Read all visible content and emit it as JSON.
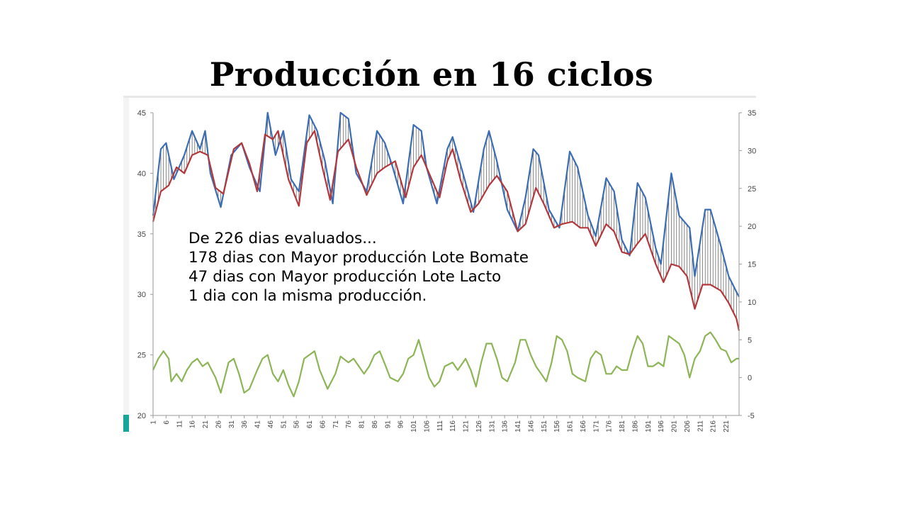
{
  "title": "Producción en 16 ciclos",
  "annotation": {
    "lines": [
      "De 226 dias evaluados...",
      "178 dias con Mayor producción  Lote Bomate",
      "47 dias con Mayor producción  Lote Lacto",
      "1 dia con la misma producción."
    ]
  },
  "colors": {
    "bomate": "#3b6db4",
    "lacto": "#b3383c",
    "difference": "#8cb556",
    "accent": "#1aa59b"
  },
  "chart_data": {
    "type": "line",
    "title": "",
    "xlabel": "",
    "ylabel": "",
    "x_range": [
      1,
      226
    ],
    "x_ticks": [
      1,
      6,
      11,
      16,
      21,
      26,
      31,
      36,
      41,
      46,
      51,
      56,
      61,
      66,
      71,
      76,
      81,
      86,
      91,
      96,
      101,
      106,
      111,
      116,
      121,
      126,
      131,
      136,
      141,
      146,
      151,
      156,
      161,
      166,
      171,
      176,
      181,
      186,
      191,
      196,
      201,
      206,
      211,
      216,
      221
    ],
    "y_left": {
      "range": [
        20,
        45
      ],
      "ticks": [
        20,
        25,
        30,
        35,
        40,
        45
      ]
    },
    "y_right": {
      "range": [
        -5,
        35
      ],
      "ticks": [
        -5,
        0,
        5,
        10,
        15,
        20,
        25,
        30,
        35
      ]
    },
    "grid": false,
    "legend": "none",
    "series": [
      {
        "axis": "left",
        "color": "#3b6db4",
        "points": [
          [
            1,
            36.5
          ],
          [
            4,
            42
          ],
          [
            6,
            42.5
          ],
          [
            9,
            39.5
          ],
          [
            13,
            41.5
          ],
          [
            16,
            43.5
          ],
          [
            19,
            42
          ],
          [
            21,
            43.5
          ],
          [
            23,
            40
          ],
          [
            27,
            37.2
          ],
          [
            31,
            41.5
          ],
          [
            35,
            42.5
          ],
          [
            38,
            40.5
          ],
          [
            42,
            38.5
          ],
          [
            45,
            45
          ],
          [
            48,
            41.5
          ],
          [
            51,
            43.5
          ],
          [
            54,
            39.5
          ],
          [
            57,
            38.5
          ],
          [
            61,
            44.8
          ],
          [
            64,
            43.5
          ],
          [
            67,
            41
          ],
          [
            70,
            37.5
          ],
          [
            73,
            45
          ],
          [
            76,
            44.5
          ],
          [
            79,
            40
          ],
          [
            83,
            38.5
          ],
          [
            87,
            43.5
          ],
          [
            90,
            42.5
          ],
          [
            93,
            40.5
          ],
          [
            97,
            37.5
          ],
          [
            101,
            44
          ],
          [
            104,
            43.5
          ],
          [
            106,
            40.5
          ],
          [
            110,
            37.5
          ],
          [
            114,
            42
          ],
          [
            116,
            43
          ],
          [
            120,
            40
          ],
          [
            124,
            36.8
          ],
          [
            128,
            42
          ],
          [
            130,
            43.5
          ],
          [
            133,
            41
          ],
          [
            137,
            37
          ],
          [
            141,
            35.2
          ],
          [
            144,
            38
          ],
          [
            147,
            42
          ],
          [
            149,
            41.5
          ],
          [
            153,
            37
          ],
          [
            157,
            35.5
          ],
          [
            161,
            41.8
          ],
          [
            164,
            40.5
          ],
          [
            168,
            36.5
          ],
          [
            171,
            34.8
          ],
          [
            175,
            39.6
          ],
          [
            178,
            38.5
          ],
          [
            181,
            34.5
          ],
          [
            184,
            33.2
          ],
          [
            187,
            39.2
          ],
          [
            190,
            38
          ],
          [
            194,
            33.8
          ],
          [
            196,
            32.5
          ],
          [
            200,
            40
          ],
          [
            203,
            36.5
          ],
          [
            207,
            35.5
          ],
          [
            209,
            31.5
          ],
          [
            213,
            37
          ],
          [
            215,
            37
          ],
          [
            219,
            34
          ],
          [
            222,
            31.5
          ],
          [
            225,
            30.2
          ],
          [
            226,
            29.8
          ]
        ]
      },
      {
        "axis": "left",
        "color": "#b3383c",
        "points": [
          [
            1,
            36
          ],
          [
            4,
            38.5
          ],
          [
            7,
            39
          ],
          [
            10,
            40.5
          ],
          [
            13,
            40
          ],
          [
            16,
            41.5
          ],
          [
            19,
            41.8
          ],
          [
            22,
            41.5
          ],
          [
            25,
            38.8
          ],
          [
            28,
            38.3
          ],
          [
            32,
            42
          ],
          [
            35,
            42.5
          ],
          [
            38,
            40.8
          ],
          [
            41,
            38.5
          ],
          [
            44,
            43.2
          ],
          [
            47,
            42.8
          ],
          [
            49,
            43.5
          ],
          [
            53,
            39.5
          ],
          [
            57,
            37.3
          ],
          [
            60,
            42.5
          ],
          [
            63,
            43.5
          ],
          [
            66,
            40.5
          ],
          [
            69,
            37.8
          ],
          [
            72,
            41.8
          ],
          [
            76,
            42.8
          ],
          [
            79,
            40.5
          ],
          [
            83,
            38.2
          ],
          [
            87,
            40
          ],
          [
            90,
            40.5
          ],
          [
            94,
            41
          ],
          [
            98,
            38
          ],
          [
            101,
            40.5
          ],
          [
            104,
            41.5
          ],
          [
            107,
            40
          ],
          [
            111,
            38
          ],
          [
            114,
            41
          ],
          [
            116,
            42
          ],
          [
            119,
            39.5
          ],
          [
            123,
            36.8
          ],
          [
            126,
            37.5
          ],
          [
            130,
            39
          ],
          [
            133,
            39.8
          ],
          [
            137,
            38.5
          ],
          [
            141,
            35.2
          ],
          [
            144,
            35.8
          ],
          [
            148,
            38.8
          ],
          [
            151,
            37.5
          ],
          [
            155,
            35.5
          ],
          [
            158,
            35.8
          ],
          [
            162,
            36
          ],
          [
            165,
            35.5
          ],
          [
            168,
            35.5
          ],
          [
            171,
            34
          ],
          [
            175,
            35.8
          ],
          [
            178,
            35.2
          ],
          [
            181,
            33.5
          ],
          [
            184,
            33.3
          ],
          [
            187,
            34.2
          ],
          [
            190,
            35
          ],
          [
            194,
            32.5
          ],
          [
            197,
            31
          ],
          [
            200,
            32.5
          ],
          [
            203,
            32.3
          ],
          [
            206,
            31.5
          ],
          [
            209,
            28.8
          ],
          [
            212,
            30.8
          ],
          [
            215,
            30.8
          ],
          [
            219,
            30.3
          ],
          [
            222,
            29.3
          ],
          [
            225,
            28
          ],
          [
            226,
            27
          ]
        ]
      },
      {
        "axis": "right",
        "color": "#8cb556",
        "points": [
          [
            1,
            1
          ],
          [
            3,
            2.5
          ],
          [
            5,
            3.5
          ],
          [
            7,
            2.5
          ],
          [
            8,
            -0.5
          ],
          [
            10,
            0.5
          ],
          [
            12,
            -0.5
          ],
          [
            14,
            1
          ],
          [
            16,
            2
          ],
          [
            18,
            2.5
          ],
          [
            20,
            1.5
          ],
          [
            22,
            2
          ],
          [
            25,
            0
          ],
          [
            27,
            -2
          ],
          [
            30,
            2
          ],
          [
            32,
            2.5
          ],
          [
            34,
            0.5
          ],
          [
            36,
            -2
          ],
          [
            38,
            -1.5
          ],
          [
            41,
            1
          ],
          [
            43,
            2.5
          ],
          [
            45,
            3
          ],
          [
            47,
            0.5
          ],
          [
            49,
            -0.5
          ],
          [
            51,
            1
          ],
          [
            53,
            -1
          ],
          [
            55,
            -2.5
          ],
          [
            57,
            -0.5
          ],
          [
            59,
            2.5
          ],
          [
            61,
            3
          ],
          [
            63,
            3.5
          ],
          [
            65,
            1
          ],
          [
            68,
            -1.5
          ],
          [
            71,
            0.5
          ],
          [
            73,
            2.8
          ],
          [
            76,
            2
          ],
          [
            78,
            2.5
          ],
          [
            80,
            1.5
          ],
          [
            82,
            0.5
          ],
          [
            84,
            1.5
          ],
          [
            86,
            3
          ],
          [
            88,
            3.5
          ],
          [
            90,
            1.8
          ],
          [
            92,
            0
          ],
          [
            95,
            -0.5
          ],
          [
            97,
            0.5
          ],
          [
            99,
            2.5
          ],
          [
            101,
            3
          ],
          [
            103,
            5
          ],
          [
            105,
            2.5
          ],
          [
            107,
            0
          ],
          [
            109,
            -1.2
          ],
          [
            111,
            -0.5
          ],
          [
            113,
            1.5
          ],
          [
            116,
            2
          ],
          [
            118,
            1
          ],
          [
            121,
            2.5
          ],
          [
            123,
            1
          ],
          [
            125,
            -1.2
          ],
          [
            127,
            2
          ],
          [
            129,
            4.5
          ],
          [
            131,
            4.5
          ],
          [
            133,
            2.5
          ],
          [
            135,
            0
          ],
          [
            137,
            -0.5
          ],
          [
            140,
            2
          ],
          [
            142,
            5
          ],
          [
            144,
            5
          ],
          [
            146,
            3
          ],
          [
            148,
            1.5
          ],
          [
            150,
            0.5
          ],
          [
            152,
            -0.5
          ],
          [
            154,
            2
          ],
          [
            156,
            5.5
          ],
          [
            158,
            5
          ],
          [
            160,
            3.5
          ],
          [
            162,
            0.5
          ],
          [
            164,
            0
          ],
          [
            167,
            -0.5
          ],
          [
            169,
            2.5
          ],
          [
            171,
            3.5
          ],
          [
            173,
            3
          ],
          [
            175,
            0.5
          ],
          [
            177,
            0.5
          ],
          [
            179,
            1.5
          ],
          [
            181,
            1
          ],
          [
            183,
            1
          ],
          [
            185,
            3.5
          ],
          [
            187,
            5.5
          ],
          [
            189,
            4.5
          ],
          [
            191,
            1.5
          ],
          [
            193,
            1.5
          ],
          [
            195,
            2
          ],
          [
            197,
            1.5
          ],
          [
            199,
            5.5
          ],
          [
            201,
            5
          ],
          [
            203,
            4.5
          ],
          [
            205,
            3
          ],
          [
            207,
            0
          ],
          [
            209,
            2.5
          ],
          [
            211,
            3.5
          ],
          [
            213,
            5.5
          ],
          [
            215,
            6
          ],
          [
            217,
            5
          ],
          [
            219,
            3.8
          ],
          [
            221,
            3.5
          ],
          [
            223,
            2
          ],
          [
            225,
            2.5
          ],
          [
            226,
            2.5
          ]
        ]
      }
    ]
  }
}
